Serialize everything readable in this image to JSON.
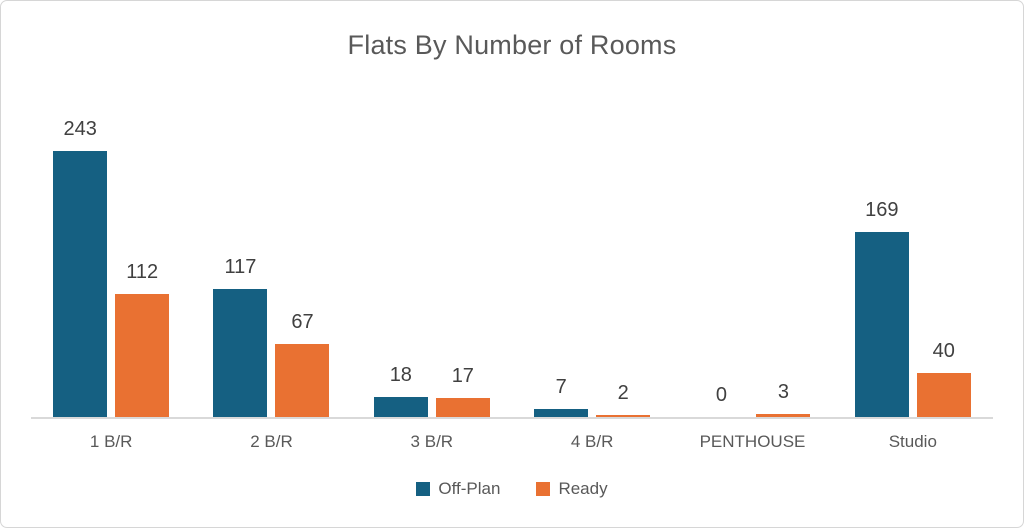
{
  "chart_data": {
    "type": "bar",
    "title": "Flats By Number of Rooms",
    "categories": [
      "1 B/R",
      "2 B/R",
      "3 B/R",
      "4 B/R",
      "PENTHOUSE",
      "Studio"
    ],
    "series": [
      {
        "name": "Off-Plan",
        "color": "#156082",
        "values": [
          243,
          117,
          18,
          7,
          0,
          169
        ]
      },
      {
        "name": "Ready",
        "color": "#E97132",
        "values": [
          112,
          67,
          17,
          2,
          3,
          40
        ]
      }
    ],
    "ylim": [
      0,
      260
    ],
    "xlabel": "",
    "ylabel": "",
    "grid": false,
    "data_labels": true,
    "legend_position": "bottom",
    "axis_line_color": "#D9D9D9",
    "label_color": "#404040",
    "text_color": "#595959"
  }
}
